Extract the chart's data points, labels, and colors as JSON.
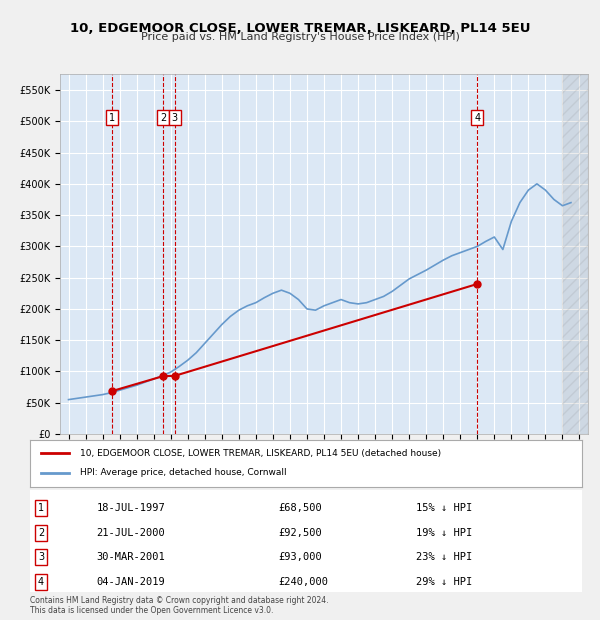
{
  "title": "10, EDGEMOOR CLOSE, LOWER TREMAR, LISKEARD, PL14 5EU",
  "subtitle": "Price paid vs. HM Land Registry's House Price Index (HPI)",
  "bg_color": "#e8f0f8",
  "plot_bg_color": "#dce8f5",
  "hpi_line_color": "#6699cc",
  "price_line_color": "#cc0000",
  "grid_color": "#ffffff",
  "sale_marker_color": "#cc0000",
  "sale_vline_color": "#cc0000",
  "transactions": [
    {
      "label": "1",
      "date_num": 1997.54,
      "price": 68500,
      "text": "18-JUL-1997",
      "pct": "15% ↓ HPI"
    },
    {
      "label": "2",
      "date_num": 2000.55,
      "price": 92500,
      "text": "21-JUL-2000",
      "pct": "19% ↓ HPI"
    },
    {
      "label": "3",
      "date_num": 2001.24,
      "price": 93000,
      "text": "30-MAR-2001",
      "pct": "23% ↓ HPI"
    },
    {
      "label": "4",
      "date_num": 2019.01,
      "price": 240000,
      "text": "04-JAN-2019",
      "pct": "29% ↓ HPI"
    }
  ],
  "hpi_data": {
    "years": [
      1995,
      1995.5,
      1996,
      1996.5,
      1997,
      1997.5,
      1998,
      1998.5,
      1999,
      1999.5,
      2000,
      2000.5,
      2001,
      2001.5,
      2002,
      2002.5,
      2003,
      2003.5,
      2004,
      2004.5,
      2005,
      2005.5,
      2006,
      2006.5,
      2007,
      2007.5,
      2008,
      2008.5,
      2009,
      2009.5,
      2010,
      2010.5,
      2011,
      2011.5,
      2012,
      2012.5,
      2013,
      2013.5,
      2014,
      2014.5,
      2015,
      2015.5,
      2016,
      2016.5,
      2017,
      2017.5,
      2018,
      2018.5,
      2019,
      2019.5,
      2020,
      2020.5,
      2021,
      2021.5,
      2022,
      2022.5,
      2023,
      2023.5,
      2024,
      2024.5
    ],
    "values": [
      55000,
      57000,
      59000,
      61000,
      63000,
      66000,
      70000,
      74000,
      78000,
      83000,
      88000,
      93000,
      99000,
      108000,
      118000,
      130000,
      145000,
      160000,
      175000,
      188000,
      198000,
      205000,
      210000,
      218000,
      225000,
      230000,
      225000,
      215000,
      200000,
      198000,
      205000,
      210000,
      215000,
      210000,
      208000,
      210000,
      215000,
      220000,
      228000,
      238000,
      248000,
      255000,
      262000,
      270000,
      278000,
      285000,
      290000,
      295000,
      300000,
      308000,
      315000,
      295000,
      340000,
      370000,
      390000,
      400000,
      390000,
      375000,
      365000,
      370000
    ]
  },
  "price_paid_data": {
    "years": [
      1997.54,
      2000.55,
      2001.24,
      2019.01
    ],
    "values": [
      68500,
      92500,
      93000,
      240000
    ]
  },
  "ylim": [
    0,
    575000
  ],
  "xlim": [
    1994.5,
    2025.5
  ],
  "yticks": [
    0,
    50000,
    100000,
    150000,
    200000,
    250000,
    300000,
    350000,
    400000,
    450000,
    500000,
    550000
  ],
  "xticks": [
    1995,
    1996,
    1997,
    1998,
    1999,
    2000,
    2001,
    2002,
    2003,
    2004,
    2005,
    2006,
    2007,
    2008,
    2009,
    2010,
    2011,
    2012,
    2013,
    2014,
    2015,
    2016,
    2017,
    2018,
    2019,
    2020,
    2021,
    2022,
    2023,
    2024,
    2025
  ],
  "legend_label_red": "10, EDGEMOOR CLOSE, LOWER TREMAR, LISKEARD, PL14 5EU (detached house)",
  "legend_label_blue": "HPI: Average price, detached house, Cornwall",
  "footer_line1": "Contains HM Land Registry data © Crown copyright and database right 2024.",
  "footer_line2": "This data is licensed under the Open Government Licence v3.0."
}
